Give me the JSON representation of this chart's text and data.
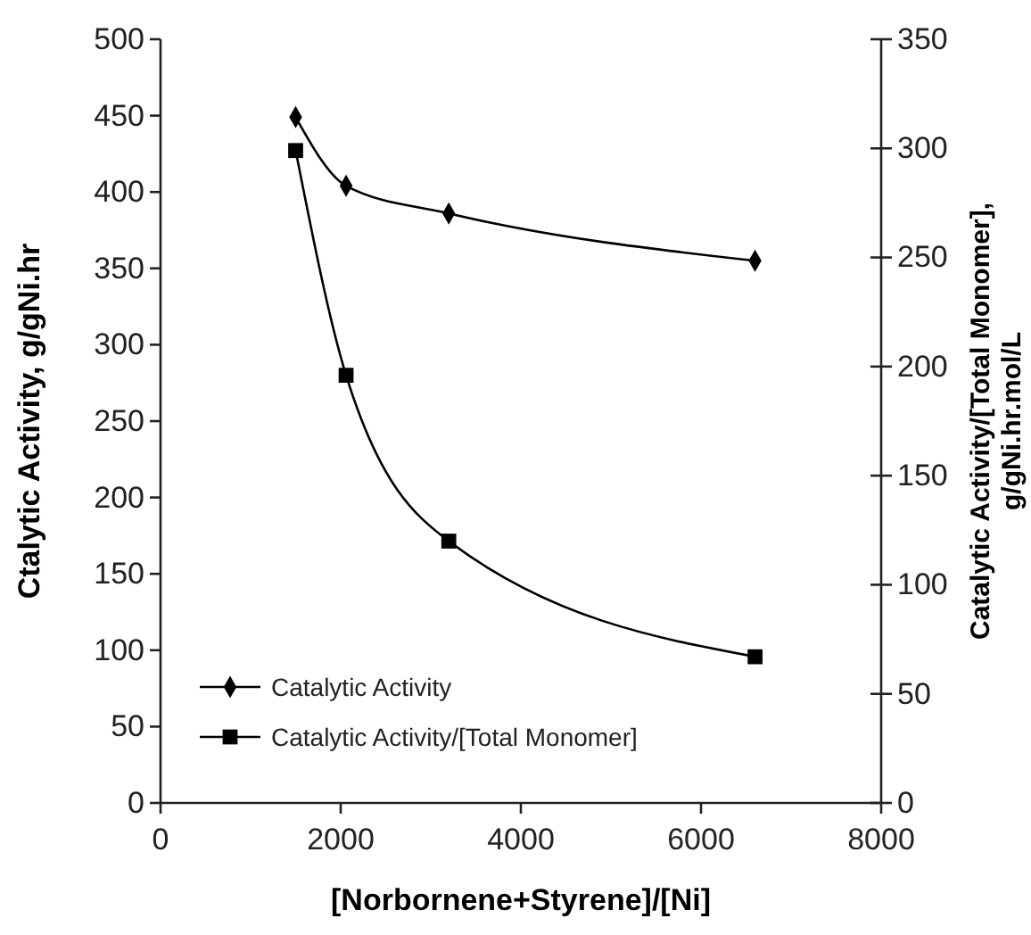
{
  "chart_data": {
    "type": "line",
    "xlabel": "[Norbornene+Styrene]/[Ni]",
    "ylabel": "Ctalytic Activity, g/gNi.hr",
    "y2label": "Catalytic Activity/[Total Monomer],\ng/gNi.hr.mol/L",
    "x": [
      1500,
      2060,
      3200,
      6600
    ],
    "xlim": [
      0,
      8000
    ],
    "xticks": [
      0,
      2000,
      4000,
      6000,
      8000
    ],
    "ylim": [
      0,
      500
    ],
    "yticks": [
      0,
      50,
      100,
      150,
      200,
      250,
      300,
      350,
      400,
      450,
      500
    ],
    "y2lim": [
      0,
      350
    ],
    "y2ticks": [
      0,
      50,
      100,
      150,
      200,
      250,
      300,
      350
    ],
    "legend": "bottom left",
    "grid": false,
    "line_style": "solid",
    "series": [
      {
        "name": "Catalytic Activity",
        "color": "#000000",
        "marker": "diamond",
        "values": [
          449,
          404,
          386,
          355
        ]
      },
      {
        "name": "Catalytic Activity/[Total Monomer]",
        "color": "#000000",
        "marker": "square",
        "axis": "y2",
        "values": [
          299,
          196,
          120,
          67
        ]
      }
    ]
  }
}
